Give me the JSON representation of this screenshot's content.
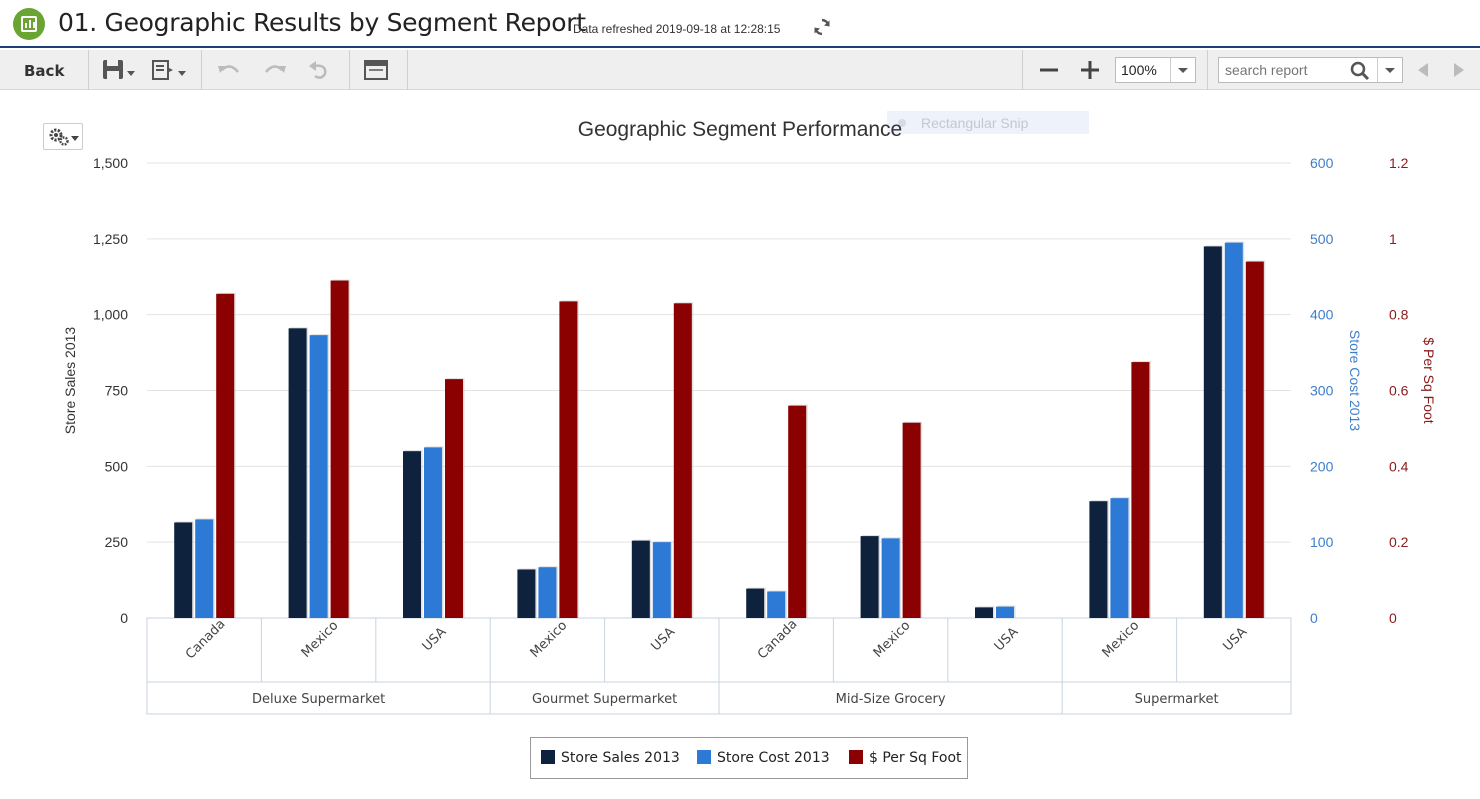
{
  "header": {
    "title": "01. Geographic Results by Segment Report",
    "refresh_text": "Data refreshed 2019-09-18 at 12:28:15"
  },
  "toolbar": {
    "back_label": "Back",
    "zoom_value": "100%",
    "search_placeholder": "search report"
  },
  "overlay": {
    "snip_label": "Rectangular Snip"
  },
  "colors": {
    "sales": "#0f223d",
    "cost": "#2d7ad6",
    "persqft": "#8b0000",
    "cost_axis": "#3d7ec9",
    "persqft_axis": "#8b1a1a"
  },
  "chart_data": {
    "type": "bar",
    "title": "Geographic Segment Performance",
    "groups": [
      {
        "name": "Deluxe Supermarket",
        "categories": [
          "Canada",
          "Mexico",
          "USA"
        ]
      },
      {
        "name": "Gourmet Supermarket",
        "categories": [
          "Mexico",
          "USA"
        ]
      },
      {
        "name": "Mid-Size Grocery",
        "categories": [
          "Canada",
          "Mexico",
          "USA"
        ]
      },
      {
        "name": "Supermarket",
        "categories": [
          "Mexico",
          "USA"
        ]
      }
    ],
    "series": [
      {
        "name": "Store Sales 2013",
        "axis": "left",
        "values": [
          315,
          955,
          550,
          160,
          255,
          97,
          270,
          35,
          385,
          1225
        ]
      },
      {
        "name": "Store Cost 2013",
        "axis": "right1",
        "values": [
          130,
          373,
          225,
          67,
          100,
          35,
          105,
          15,
          158,
          495
        ]
      },
      {
        "name": "$ Per Sq Foot",
        "axis": "right2",
        "values": [
          0.855,
          0.89,
          0.63,
          0.835,
          0.83,
          0.56,
          0.515,
          0,
          0.675,
          0.94
        ]
      }
    ],
    "y_left": {
      "label": "Store Sales 2013",
      "min": 0,
      "max": 1500,
      "ticks": [
        "0",
        "250",
        "500",
        "750",
        "1,000",
        "1,250",
        "1,500"
      ]
    },
    "y_right1": {
      "label": "Store Cost 2013",
      "min": 0,
      "max": 600,
      "ticks": [
        "0",
        "100",
        "200",
        "300",
        "400",
        "500",
        "600"
      ]
    },
    "y_right2": {
      "label": "$ Per Sq Foot",
      "min": 0,
      "max": 1.2,
      "ticks": [
        "0",
        "0.2",
        "0.4",
        "0.6",
        "0.8",
        "1",
        "1.2"
      ]
    },
    "legend_position": "bottom",
    "grid": true
  }
}
